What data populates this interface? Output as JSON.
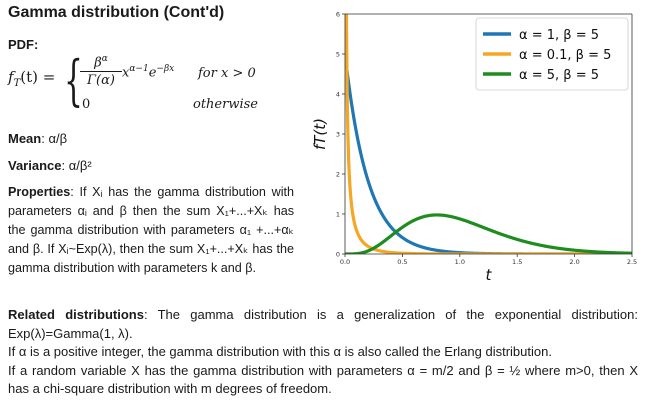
{
  "title": "Gamma distribution (Cont'd)",
  "pdf_label": "PDF:",
  "formula": {
    "lhs": "f",
    "lhs_sub": "T",
    "lhs_rest": "(t) =",
    "num_base": "β",
    "num_sup": "α",
    "den": "Γ(α)",
    "power_part": "x",
    "power_sup": "α−1",
    "exp_part": "e",
    "exp_sup": "−βx",
    "cond1": "for x > 0",
    "zero": "0",
    "cond2": "otherwise"
  },
  "mean": {
    "label": "Mean",
    "value": ": α/β"
  },
  "variance": {
    "label": "Variance",
    "value": ": α/β²"
  },
  "properties": {
    "label": "Properties",
    "text": ": If Xᵢ has the gamma distribution with parameters αᵢ and β then the sum X₁+...+Xₖ has the gamma distribution with parameters α₁ +...+αₖ and β. If Xᵢ~Exp(λ), then the sum X₁+...+Xₖ has the gamma distribution with parameters k and β."
  },
  "related": {
    "label": "Related distributions",
    "p1": ": The gamma distribution is a generalization of the exponential distribution: Exp(λ)=Gamma(1, λ).",
    "p2": "If α is a positive integer, the gamma distribution with this α is also called the Erlang distribution.",
    "p3": "If a random variable X has the gamma distribution with parameters α = m/2 and β = ½ where m>0, then X has a chi-square distribution with m degrees of freedom."
  },
  "chart_data": {
    "type": "line",
    "xlabel": "t",
    "ylabel": "f_T(t)",
    "xlim": [
      0,
      2.5
    ],
    "ylim": [
      0,
      6
    ],
    "xticks": [
      "0.0",
      "0.5",
      "1.0",
      "1.5",
      "2.0",
      "2.5"
    ],
    "yticks": [
      "0",
      "1",
      "2",
      "3",
      "4",
      "5",
      "6"
    ],
    "legend_position": "top-right",
    "series": [
      {
        "name": "α = 1, β = 5",
        "alpha": 1,
        "beta": 5,
        "color": "#1f77b4"
      },
      {
        "name": "α = 0.1, β = 5",
        "alpha": 0.1,
        "beta": 5,
        "color": "#f5a623"
      },
      {
        "name": "α = 5, β = 5",
        "alpha": 5,
        "beta": 5,
        "color": "#1e8c1e"
      }
    ]
  }
}
